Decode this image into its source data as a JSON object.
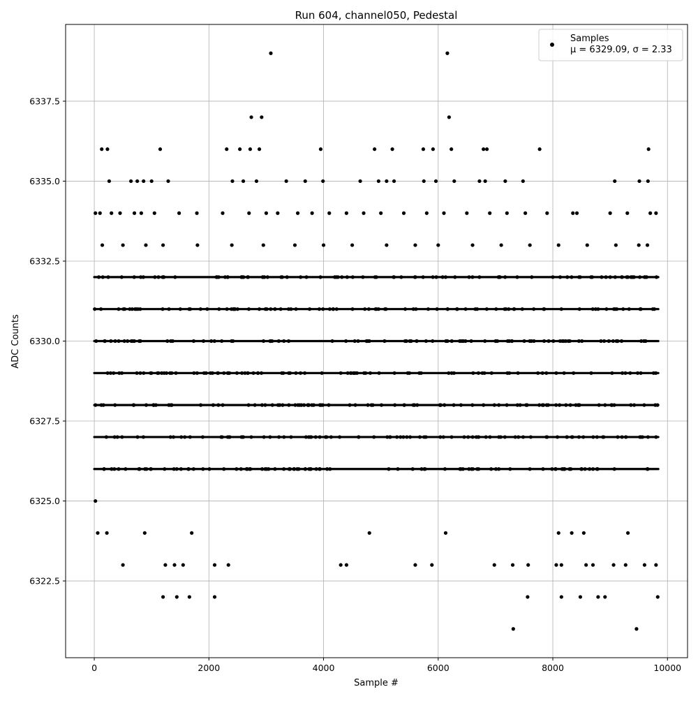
{
  "chart_data": {
    "type": "scatter",
    "title": "Run 604, channel050, Pedestal",
    "xlabel": "Sample #",
    "ylabel": "ADC Counts",
    "xlim": [
      -500,
      10350
    ],
    "ylim": [
      6320.1,
      6339.9
    ],
    "xticks": [
      0,
      2000,
      4000,
      6000,
      8000,
      10000
    ],
    "xtick_labels": [
      "0",
      "2000",
      "4000",
      "6000",
      "8000",
      "10000"
    ],
    "yticks": [
      6322.5,
      6325.0,
      6327.5,
      6330.0,
      6332.5,
      6335.0,
      6337.5
    ],
    "ytick_labels": [
      "6322.5",
      "6325.0",
      "6327.5",
      "6330.0",
      "6332.5",
      "6335.0",
      "6337.5"
    ],
    "grid": true,
    "legend_position": "upper right",
    "marker_color": "#000000",
    "series": [
      {
        "name": "Samples",
        "stats_label": "μ = 6329.09, σ = 2.33",
        "x": [
          3080,
          6160,
          2740,
          2920,
          6190,
          130,
          230,
          1150,
          2310,
          2540,
          2720,
          2880,
          3950,
          4890,
          5200,
          5740,
          5910,
          6230,
          6790,
          6850,
          7770,
          9670,
          260,
          640,
          750,
          860,
          1000,
          1290,
          2410,
          2600,
          2830,
          3350,
          3680,
          3990,
          4640,
          4960,
          5100,
          5230,
          5750,
          5960,
          6280,
          6720,
          6820,
          7170,
          7480,
          9080,
          9510,
          9660,
          20,
          100,
          300,
          450,
          700,
          820,
          1050,
          1480,
          1790,
          2240,
          2700,
          3000,
          3200,
          3550,
          3800,
          4100,
          4400,
          4700,
          5000,
          5400,
          5800,
          6100,
          6500,
          6900,
          7200,
          7520,
          7900,
          8350,
          8420,
          9000,
          9300,
          9700,
          9800,
          140,
          500,
          900,
          1200,
          1800,
          2400,
          2950,
          3500,
          4000,
          4500,
          5100,
          5600,
          6000,
          6600,
          7100,
          7600,
          8100,
          8600,
          9100,
          9500,
          9650,
          20,
          60,
          220,
          880,
          1700,
          4800,
          6130,
          8100,
          8330,
          8540,
          9310,
          500,
          1240,
          1400,
          1550,
          2100,
          2340,
          4300,
          4400,
          5600,
          5890,
          6980,
          7300,
          7570,
          8060,
          8150,
          8580,
          8700,
          9060,
          9270,
          9600,
          9800,
          1200,
          1440,
          1660,
          2100,
          7560,
          8150,
          8480,
          8790,
          8910,
          9830,
          7310,
          9460
        ],
        "y": [
          6339,
          6339,
          6337,
          6337,
          6337,
          6336,
          6336,
          6336,
          6336,
          6336,
          6336,
          6336,
          6336,
          6336,
          6336,
          6336,
          6336,
          6336,
          6336,
          6336,
          6336,
          6336,
          6335,
          6335,
          6335,
          6335,
          6335,
          6335,
          6335,
          6335,
          6335,
          6335,
          6335,
          6335,
          6335,
          6335,
          6335,
          6335,
          6335,
          6335,
          6335,
          6335,
          6335,
          6335,
          6335,
          6335,
          6335,
          6335,
          6334,
          6334,
          6334,
          6334,
          6334,
          6334,
          6334,
          6334,
          6334,
          6334,
          6334,
          6334,
          6334,
          6334,
          6334,
          6334,
          6334,
          6334,
          6334,
          6334,
          6334,
          6334,
          6334,
          6334,
          6334,
          6334,
          6334,
          6334,
          6334,
          6334,
          6334,
          6334,
          6334,
          6333,
          6333,
          6333,
          6333,
          6333,
          6333,
          6333,
          6333,
          6333,
          6333,
          6333,
          6333,
          6333,
          6333,
          6333,
          6333,
          6333,
          6333,
          6333,
          6333,
          6333,
          6325,
          6324,
          6324,
          6324,
          6324,
          6324,
          6324,
          6324,
          6324,
          6324,
          6324,
          6323,
          6323,
          6323,
          6323,
          6323,
          6323,
          6323,
          6323,
          6323,
          6323,
          6323,
          6323,
          6323,
          6323,
          6323,
          6323,
          6323,
          6323,
          6323,
          6323,
          6323,
          6322,
          6322,
          6322,
          6322,
          6322,
          6322,
          6322,
          6322,
          6322,
          6322,
          6321,
          6321
        ]
      }
    ],
    "dense_rows": {
      "description": "",
      "levels": [
        6326,
        6327,
        6328,
        6329,
        6330,
        6331,
        6332
      ],
      "x_range": [
        0,
        9840
      ],
      "sample_count": 9840
    }
  }
}
